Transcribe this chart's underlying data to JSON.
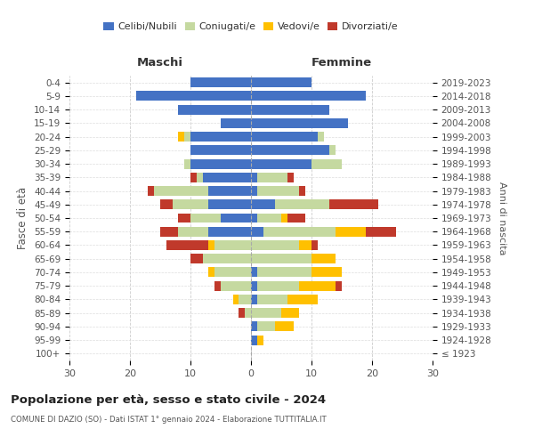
{
  "age_groups": [
    "100+",
    "95-99",
    "90-94",
    "85-89",
    "80-84",
    "75-79",
    "70-74",
    "65-69",
    "60-64",
    "55-59",
    "50-54",
    "45-49",
    "40-44",
    "35-39",
    "30-34",
    "25-29",
    "20-24",
    "15-19",
    "10-14",
    "5-9",
    "0-4"
  ],
  "birth_years": [
    "≤ 1923",
    "1924-1928",
    "1929-1933",
    "1934-1938",
    "1939-1943",
    "1944-1948",
    "1949-1953",
    "1954-1958",
    "1959-1963",
    "1964-1968",
    "1969-1973",
    "1974-1978",
    "1979-1983",
    "1984-1988",
    "1989-1993",
    "1994-1998",
    "1999-2003",
    "2004-2008",
    "2009-2013",
    "2014-2018",
    "2019-2023"
  ],
  "colors": {
    "celibi": "#4472c4",
    "coniugati": "#c5d9a0",
    "vedovi": "#ffc000",
    "divorziati": "#c0392b"
  },
  "maschi": {
    "celibi": [
      0,
      0,
      0,
      0,
      0,
      0,
      0,
      0,
      0,
      7,
      5,
      7,
      7,
      8,
      10,
      10,
      10,
      5,
      12,
      19,
      10
    ],
    "coniugati": [
      0,
      0,
      0,
      1,
      2,
      5,
      6,
      8,
      6,
      5,
      5,
      6,
      9,
      1,
      1,
      0,
      1,
      0,
      0,
      0,
      0
    ],
    "vedovi": [
      0,
      0,
      0,
      0,
      1,
      0,
      1,
      0,
      1,
      0,
      0,
      0,
      0,
      0,
      0,
      0,
      1,
      0,
      0,
      0,
      0
    ],
    "divorziati": [
      0,
      0,
      0,
      1,
      0,
      1,
      0,
      2,
      7,
      3,
      2,
      2,
      1,
      1,
      0,
      0,
      0,
      0,
      0,
      0,
      0
    ]
  },
  "femmine": {
    "celibi": [
      0,
      1,
      1,
      0,
      1,
      1,
      1,
      0,
      0,
      2,
      1,
      4,
      1,
      1,
      10,
      13,
      11,
      16,
      13,
      19,
      10
    ],
    "coniugati": [
      0,
      0,
      3,
      5,
      5,
      7,
      9,
      10,
      8,
      12,
      4,
      9,
      7,
      5,
      5,
      1,
      1,
      0,
      0,
      0,
      0
    ],
    "vedovi": [
      0,
      1,
      3,
      3,
      5,
      6,
      5,
      4,
      2,
      5,
      1,
      0,
      0,
      0,
      0,
      0,
      0,
      0,
      0,
      0,
      0
    ],
    "divorziati": [
      0,
      0,
      0,
      0,
      0,
      1,
      0,
      0,
      1,
      5,
      3,
      8,
      1,
      1,
      0,
      0,
      0,
      0,
      0,
      0,
      0
    ]
  },
  "xlim": 30,
  "title": "Popolazione per età, sesso e stato civile - 2024",
  "subtitle": "COMUNE DI DAZIO (SO) - Dati ISTAT 1° gennaio 2024 - Elaborazione TUTTITALIA.IT",
  "ylabel_left": "Fasce di età",
  "ylabel_right": "Anni di nascita",
  "header_maschi": "Maschi",
  "header_femmine": "Femmine",
  "legend_labels": [
    "Celibi/Nubili",
    "Coniugati/e",
    "Vedovi/e",
    "Divorziati/e"
  ],
  "legend_colors": [
    "#4472c4",
    "#c5d9a0",
    "#ffc000",
    "#c0392b"
  ]
}
